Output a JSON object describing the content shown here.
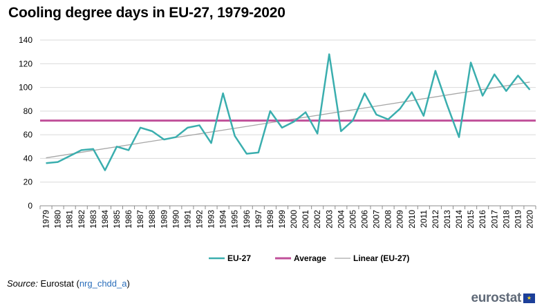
{
  "title": "Cooling degree days in EU-27, 1979-2020",
  "source": {
    "label": "Source:",
    "publisher": "Eurostat",
    "code": "nrg_chdd_a"
  },
  "logo": {
    "text": "eurostat",
    "icon": "eu-flag-icon"
  },
  "colors": {
    "eu27": "#3aaeae",
    "average": "#c0509a",
    "linear": "#a6a6a6",
    "grid": "#d9d9d9"
  },
  "chart_data": {
    "type": "line",
    "title": "Cooling degree days in EU-27, 1979-2020",
    "xlabel": "",
    "ylabel": "",
    "ylim": [
      0,
      140
    ],
    "yticks": [
      0,
      20,
      40,
      60,
      80,
      100,
      120,
      140
    ],
    "grid": "horizontal",
    "legend_position": "bottom",
    "x": [
      "1979",
      "1980",
      "1981",
      "1982",
      "1983",
      "1984",
      "1985",
      "1986",
      "1987",
      "1988",
      "1989",
      "1990",
      "1991",
      "1992",
      "1993",
      "1994",
      "1995",
      "1996",
      "1997",
      "1998",
      "1999",
      "2000",
      "2001",
      "2002",
      "2003",
      "2004",
      "2005",
      "2006",
      "2007",
      "2008",
      "2009",
      "2010",
      "2011",
      "2012",
      "2013",
      "2014",
      "2015",
      "2016",
      "2017",
      "2018",
      "2019",
      "2020"
    ],
    "series": [
      {
        "name": "EU-27",
        "kind": "line",
        "values": [
          36,
          37,
          42,
          47,
          48,
          30,
          50,
          47,
          66,
          63,
          56,
          58,
          66,
          68,
          53,
          95,
          59,
          44,
          45,
          80,
          66,
          71,
          79,
          61,
          128,
          63,
          72,
          95,
          77,
          73,
          82,
          96,
          76,
          114,
          85,
          58,
          121,
          93,
          111,
          97,
          110,
          98
        ]
      },
      {
        "name": "Average",
        "kind": "constant",
        "value": 72
      },
      {
        "name": "Linear (EU-27)",
        "kind": "trend",
        "start": 40.5,
        "end": 104.5
      }
    ]
  }
}
